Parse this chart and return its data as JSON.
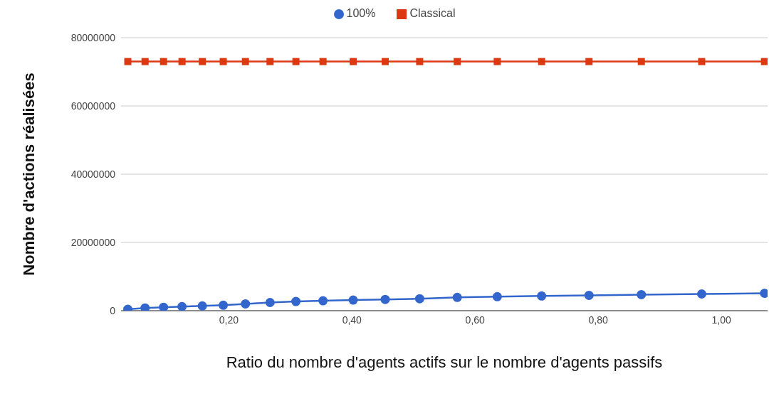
{
  "chart_data": {
    "type": "line",
    "xlabel": "Ratio du nombre d'agents actifs sur le nombre d'agents passifs",
    "ylabel": "Nombre d'actions réalisées",
    "x": [
      0.036,
      0.064,
      0.094,
      0.124,
      0.157,
      0.191,
      0.227,
      0.267,
      0.309,
      0.353,
      0.402,
      0.454,
      0.51,
      0.571,
      0.636,
      0.708,
      0.785,
      0.87,
      0.968,
      1.07
    ],
    "series": [
      {
        "name": "100%",
        "color": "#3366cc",
        "marker": "circle",
        "values": [
          400000,
          800000,
          1000000,
          1200000,
          1400000,
          1600000,
          2000000,
          2400000,
          2700000,
          2900000,
          3100000,
          3300000,
          3500000,
          3900000,
          4100000,
          4300000,
          4500000,
          4700000,
          4900000,
          5100000
        ]
      },
      {
        "name": "Classical",
        "color": "#dc3912",
        "marker": "square",
        "values": [
          73000000,
          73000000,
          73000000,
          73000000,
          73000000,
          73000000,
          73000000,
          73000000,
          73000000,
          73000000,
          73000000,
          73000000,
          73000000,
          73000000,
          73000000,
          73000000,
          73000000,
          73000000,
          73000000,
          73000000
        ]
      }
    ],
    "xlim": [
      0.025,
      1.075
    ],
    "xticks": [
      {
        "value": 0.2,
        "label": "0,20"
      },
      {
        "value": 0.4,
        "label": "0,40"
      },
      {
        "value": 0.6,
        "label": "0,60"
      },
      {
        "value": 0.8,
        "label": "0,80"
      },
      {
        "value": 1.0,
        "label": "1,00"
      }
    ],
    "ylim": [
      0,
      80000000
    ],
    "yticks": [
      0,
      20000000,
      40000000,
      60000000,
      80000000
    ],
    "grid": "y",
    "legend": "top",
    "line_style": "solid"
  }
}
